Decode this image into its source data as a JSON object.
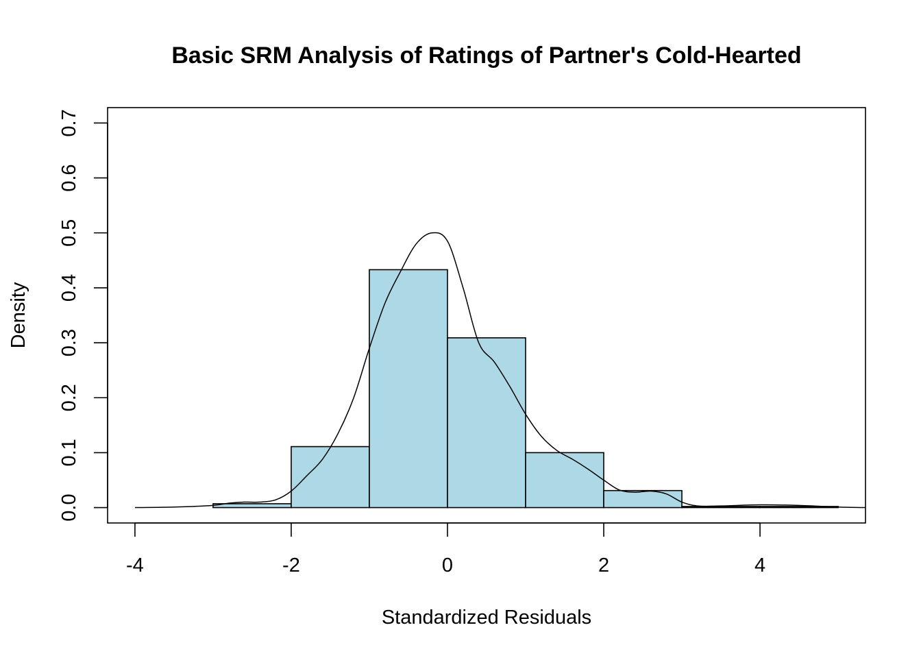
{
  "chart_data": {
    "type": "bar",
    "title": "Basic SRM Analysis of Ratings of Partner's Cold-Hearted",
    "xlabel": "Standardized Residuals",
    "ylabel": "Density",
    "bar_color": "#ADD8E6",
    "edge_color": "#000000",
    "xlim": [
      -4.35,
      5.35
    ],
    "ylim": [
      -0.028,
      0.728
    ],
    "x_ticks": [
      -4,
      -2,
      0,
      2,
      4
    ],
    "x_tick_labels": [
      "-4",
      "-2",
      "0",
      "2",
      "4"
    ],
    "y_ticks": [
      0.0,
      0.1,
      0.2,
      0.3,
      0.4,
      0.5,
      0.6,
      0.7
    ],
    "y_tick_labels": [
      "0.0",
      "0.1",
      "0.2",
      "0.3",
      "0.4",
      "0.5",
      "0.6",
      "0.7"
    ],
    "bins": [
      {
        "x0": -4,
        "x1": -3,
        "density": 0.0
      },
      {
        "x0": -3,
        "x1": -2,
        "density": 0.007
      },
      {
        "x0": -2,
        "x1": -1,
        "density": 0.111
      },
      {
        "x0": -1,
        "x1": 0,
        "density": 0.433
      },
      {
        "x0": 0,
        "x1": 1,
        "density": 0.309
      },
      {
        "x0": 1,
        "x1": 2,
        "density": 0.1
      },
      {
        "x0": 2,
        "x1": 3,
        "density": 0.031
      },
      {
        "x0": 3,
        "x1": 4,
        "density": 0.002
      },
      {
        "x0": 4,
        "x1": 5,
        "density": 0.002
      }
    ],
    "density_curve": {
      "x": [
        -4.0,
        -3.5,
        -3.0,
        -2.8,
        -2.6,
        -2.4,
        -2.2,
        -2.0,
        -1.8,
        -1.6,
        -1.4,
        -1.2,
        -1.0,
        -0.8,
        -0.6,
        -0.4,
        -0.2,
        0.0,
        0.2,
        0.4,
        0.6,
        0.8,
        1.0,
        1.2,
        1.4,
        1.6,
        1.8,
        2.0,
        2.2,
        2.4,
        2.6,
        2.8,
        3.0,
        3.2,
        3.5,
        4.0,
        4.5,
        5.0,
        5.35
      ],
      "y": [
        0.0,
        0.001,
        0.004,
        0.008,
        0.01,
        0.01,
        0.014,
        0.03,
        0.058,
        0.088,
        0.135,
        0.2,
        0.29,
        0.372,
        0.43,
        0.48,
        0.5,
        0.485,
        0.4,
        0.3,
        0.265,
        0.22,
        0.17,
        0.13,
        0.104,
        0.088,
        0.07,
        0.05,
        0.032,
        0.028,
        0.03,
        0.025,
        0.01,
        0.003,
        0.003,
        0.005,
        0.004,
        0.001,
        0.0
      ]
    }
  }
}
